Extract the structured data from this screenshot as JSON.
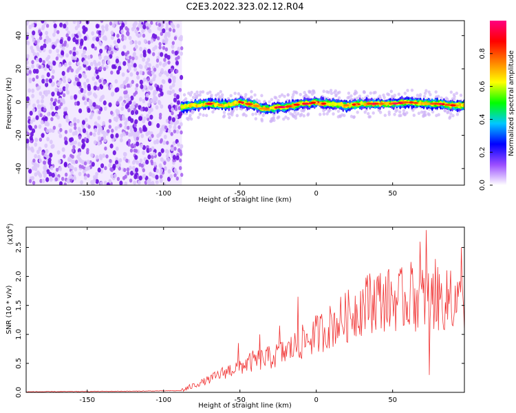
{
  "title": "C2E3.2022.323.02.12.R04",
  "chart_data": [
    {
      "type": "heatmap",
      "title": "C2E3.2022.323.02.12.R04",
      "xlabel": "Height of straight line (km)",
      "ylabel": "Frequency (Hz)",
      "xlim": [
        -190,
        97
      ],
      "ylim": [
        -50,
        49
      ],
      "xticks": [
        -150,
        -100,
        -50,
        0,
        50
      ],
      "yticks": [
        -40,
        -20,
        0,
        20,
        40
      ],
      "noise_region": {
        "x": [
          -190,
          -88
        ],
        "y": [
          -50,
          49
        ]
      },
      "signal_track": {
        "x_start": -88,
        "x_end": 97,
        "points": [
          [
            -88,
            -3
          ],
          [
            -80,
            -2
          ],
          [
            -70,
            -1
          ],
          [
            -60,
            -2
          ],
          [
            -50,
            0
          ],
          [
            -45,
            -1
          ],
          [
            -40,
            -2
          ],
          [
            -35,
            -4
          ],
          [
            -30,
            -4
          ],
          [
            -25,
            -3
          ],
          [
            -20,
            -3
          ],
          [
            -15,
            -2
          ],
          [
            -10,
            -1
          ],
          [
            -5,
            -1
          ],
          [
            0,
            0
          ],
          [
            5,
            -1
          ],
          [
            10,
            -1
          ],
          [
            20,
            -2
          ],
          [
            30,
            -1
          ],
          [
            40,
            -1
          ],
          [
            50,
            -1
          ],
          [
            60,
            0
          ],
          [
            70,
            -1
          ],
          [
            80,
            -1
          ],
          [
            90,
            -2
          ],
          [
            97,
            -2
          ]
        ]
      },
      "colorbar": {
        "label": "Normalized spectral amplitude",
        "range": [
          0,
          1
        ],
        "ticks": [
          "0.0",
          "0.2",
          "0.4",
          "0.6",
          "0.8"
        ],
        "colors": [
          "#ffffff",
          "#9a4dff",
          "#0000ff",
          "#00c8ff",
          "#00ff00",
          "#ffff00",
          "#ff7f00",
          "#ff0000",
          "#ff0080"
        ]
      }
    },
    {
      "type": "line",
      "xlabel": "Height of straight line (km)",
      "ylabel": "SNR (10 * v/v)",
      "yscale_label": "(x10",
      "yscale_exp": "4",
      "yscale_close": ")",
      "xlim": [
        -190,
        97
      ],
      "ylim": [
        0,
        2.85
      ],
      "xticks": [
        -150,
        -100,
        -50,
        0,
        50
      ],
      "yticks": [
        "0.0",
        "0.5",
        "1.0",
        "1.5",
        "2.0",
        "2.5"
      ],
      "series": [
        {
          "name": "SNR",
          "color": "#f03030",
          "envelope": [
            [
              -190,
              0.01
            ],
            [
              -120,
              0.02
            ],
            [
              -88,
              0.03
            ],
            [
              -80,
              0.12
            ],
            [
              -70,
              0.22
            ],
            [
              -60,
              0.35
            ],
            [
              -50,
              0.45
            ],
            [
              -40,
              0.55
            ],
            [
              -30,
              0.6
            ],
            [
              -20,
              0.7
            ],
            [
              -10,
              0.85
            ],
            [
              0,
              1.0
            ],
            [
              10,
              1.15
            ],
            [
              20,
              1.3
            ],
            [
              30,
              1.5
            ],
            [
              40,
              1.6
            ],
            [
              50,
              1.6
            ],
            [
              60,
              1.6
            ],
            [
              70,
              1.62
            ],
            [
              80,
              1.6
            ],
            [
              90,
              1.55
            ],
            [
              97,
              1.5
            ]
          ],
          "spikes": [
            [
              -51,
              0.85
            ],
            [
              -37,
              1.0
            ],
            [
              -24,
              1.15
            ],
            [
              -12,
              1.65
            ],
            [
              10,
              1.3
            ],
            [
              35,
              2.05
            ],
            [
              40,
              2.0
            ],
            [
              62,
              2.25
            ],
            [
              68,
              2.6
            ],
            [
              72,
              2.8
            ],
            [
              78,
              2.3
            ],
            [
              88,
              2.1
            ],
            [
              95,
              2.5
            ],
            [
              74,
              0.3
            ]
          ]
        }
      ]
    }
  ]
}
